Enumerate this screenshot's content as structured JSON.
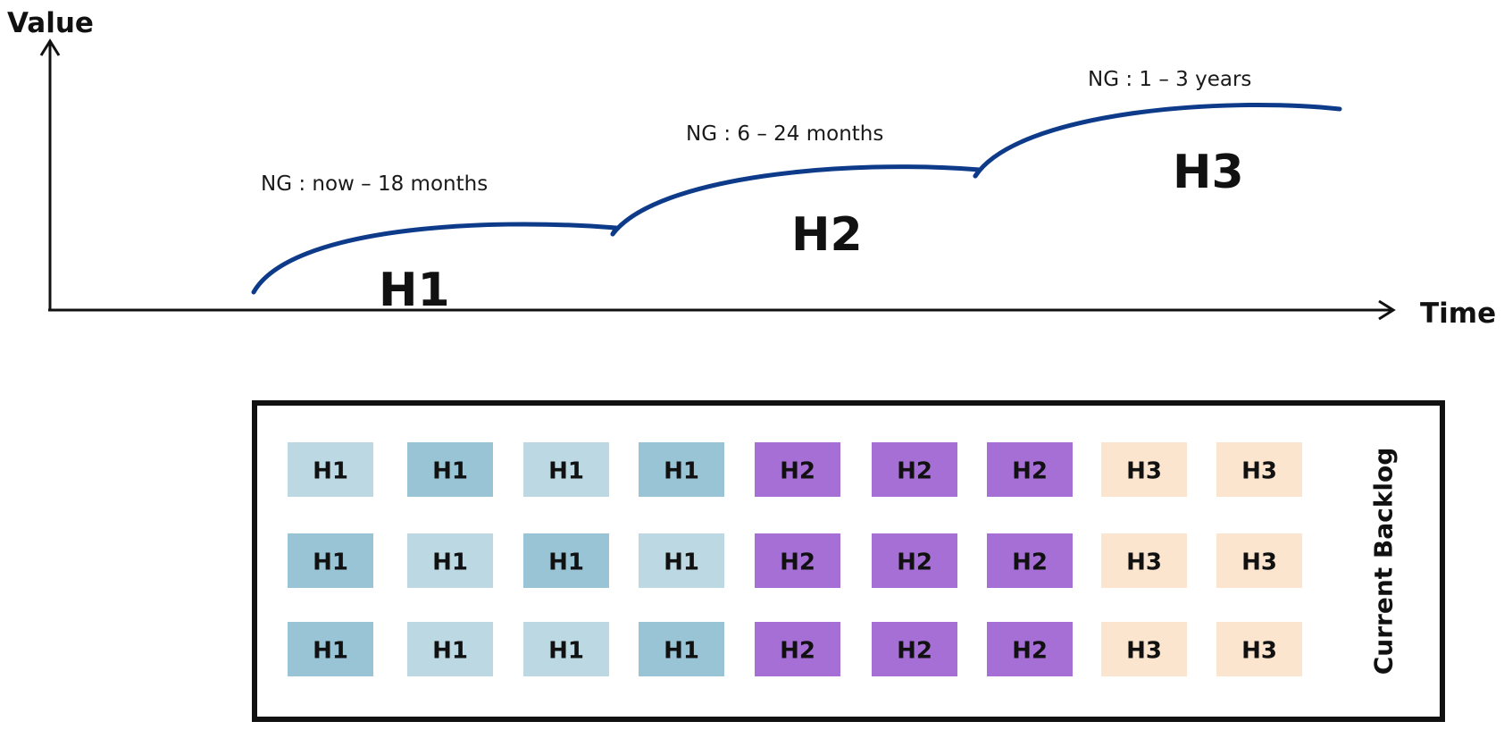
{
  "axes": {
    "y_label": "Value",
    "x_label": "Time"
  },
  "horizons": [
    {
      "id": "H1",
      "label": "H1",
      "ng_label": "NG : now – 18 months"
    },
    {
      "id": "H2",
      "label": "H2",
      "ng_label": "NG : 6 – 24 months"
    },
    {
      "id": "H3",
      "label": "H3",
      "ng_label": "NG : 1 – 3 years"
    }
  ],
  "colors": {
    "curve": "#0d3b8a",
    "axis": "#111111",
    "h1_light": "#bcd9e3",
    "h1_dark": "#98c4d6",
    "h2": "#a66fd6",
    "h3": "#fbe5cf",
    "panel_border": "#111111"
  },
  "backlog": {
    "title": "Current Backlog",
    "rows": [
      [
        {
          "label": "H1",
          "tone": "h1_light"
        },
        {
          "label": "H1",
          "tone": "h1_dark"
        },
        {
          "label": "H1",
          "tone": "h1_light"
        },
        {
          "label": "H1",
          "tone": "h1_dark"
        },
        {
          "label": "H2",
          "tone": "h2"
        },
        {
          "label": "H2",
          "tone": "h2"
        },
        {
          "label": "H2",
          "tone": "h2"
        },
        {
          "label": "H3",
          "tone": "h3"
        },
        {
          "label": "H3",
          "tone": "h3"
        }
      ],
      [
        {
          "label": "H1",
          "tone": "h1_dark"
        },
        {
          "label": "H1",
          "tone": "h1_light"
        },
        {
          "label": "H1",
          "tone": "h1_dark"
        },
        {
          "label": "H1",
          "tone": "h1_light"
        },
        {
          "label": "H2",
          "tone": "h2"
        },
        {
          "label": "H2",
          "tone": "h2"
        },
        {
          "label": "H2",
          "tone": "h2"
        },
        {
          "label": "H3",
          "tone": "h3"
        },
        {
          "label": "H3",
          "tone": "h3"
        }
      ],
      [
        {
          "label": "H1",
          "tone": "h1_dark"
        },
        {
          "label": "H1",
          "tone": "h1_light"
        },
        {
          "label": "H1",
          "tone": "h1_light"
        },
        {
          "label": "H1",
          "tone": "h1_dark"
        },
        {
          "label": "H2",
          "tone": "h2"
        },
        {
          "label": "H2",
          "tone": "h2"
        },
        {
          "label": "H2",
          "tone": "h2"
        },
        {
          "label": "H3",
          "tone": "h3"
        },
        {
          "label": "H3",
          "tone": "h3"
        }
      ]
    ]
  }
}
